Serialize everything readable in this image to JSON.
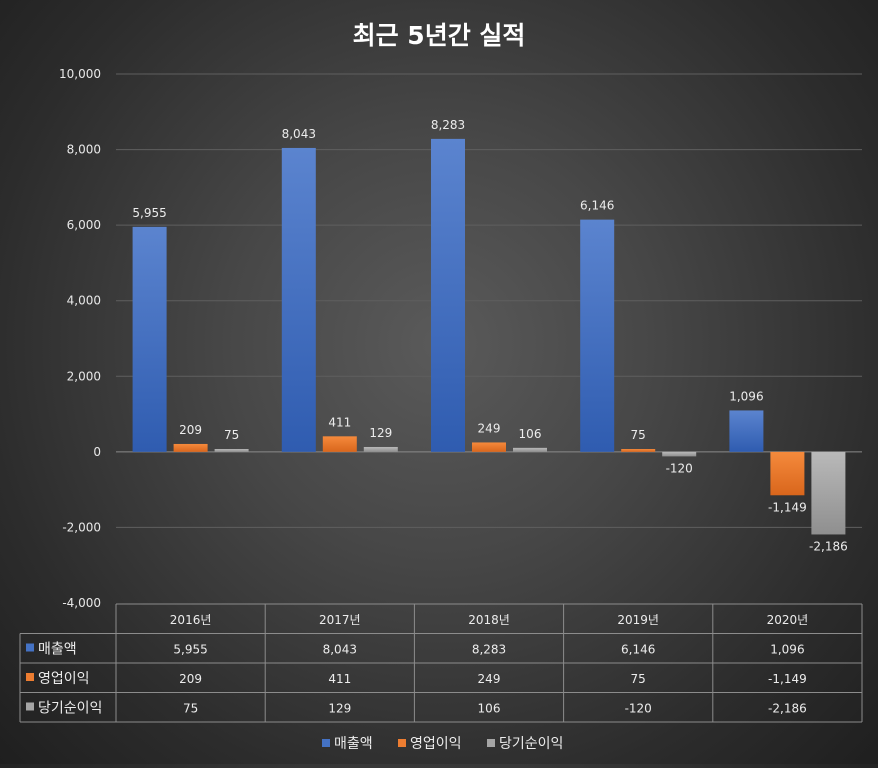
{
  "chart_data": {
    "type": "bar",
    "title": "최근 5년간 실적",
    "categories": [
      "2016년",
      "2017년",
      "2018년",
      "2019년",
      "2020년"
    ],
    "series": [
      {
        "name": "매출액",
        "values": [
          5955,
          8043,
          8283,
          6146,
          1096
        ],
        "labels": [
          "5,955",
          "8,043",
          "8,283",
          "6,146",
          "1,096"
        ]
      },
      {
        "name": "영업이익",
        "values": [
          209,
          411,
          249,
          75,
          -1149
        ],
        "labels": [
          "209",
          "411",
          "249",
          "75",
          "-1,149"
        ]
      },
      {
        "name": "당기순이익",
        "values": [
          75,
          129,
          106,
          -120,
          -2186
        ],
        "labels": [
          "75",
          "129",
          "106",
          "-120",
          "-2,186"
        ]
      }
    ],
    "ylim": [
      -4000,
      10000
    ],
    "yticks": [
      -4000,
      -2000,
      0,
      2000,
      4000,
      6000,
      8000,
      10000
    ],
    "ytick_labels": [
      "-4,000",
      "-2,000",
      "0",
      "2,000",
      "4,000",
      "6,000",
      "8,000",
      "10,000"
    ],
    "grid": true,
    "legend": "bottom",
    "data_table": true
  },
  "colors": {
    "매출액": "#4472c4",
    "영업이익": "#ed7d31",
    "당기순이익": "#a5a5a5"
  }
}
